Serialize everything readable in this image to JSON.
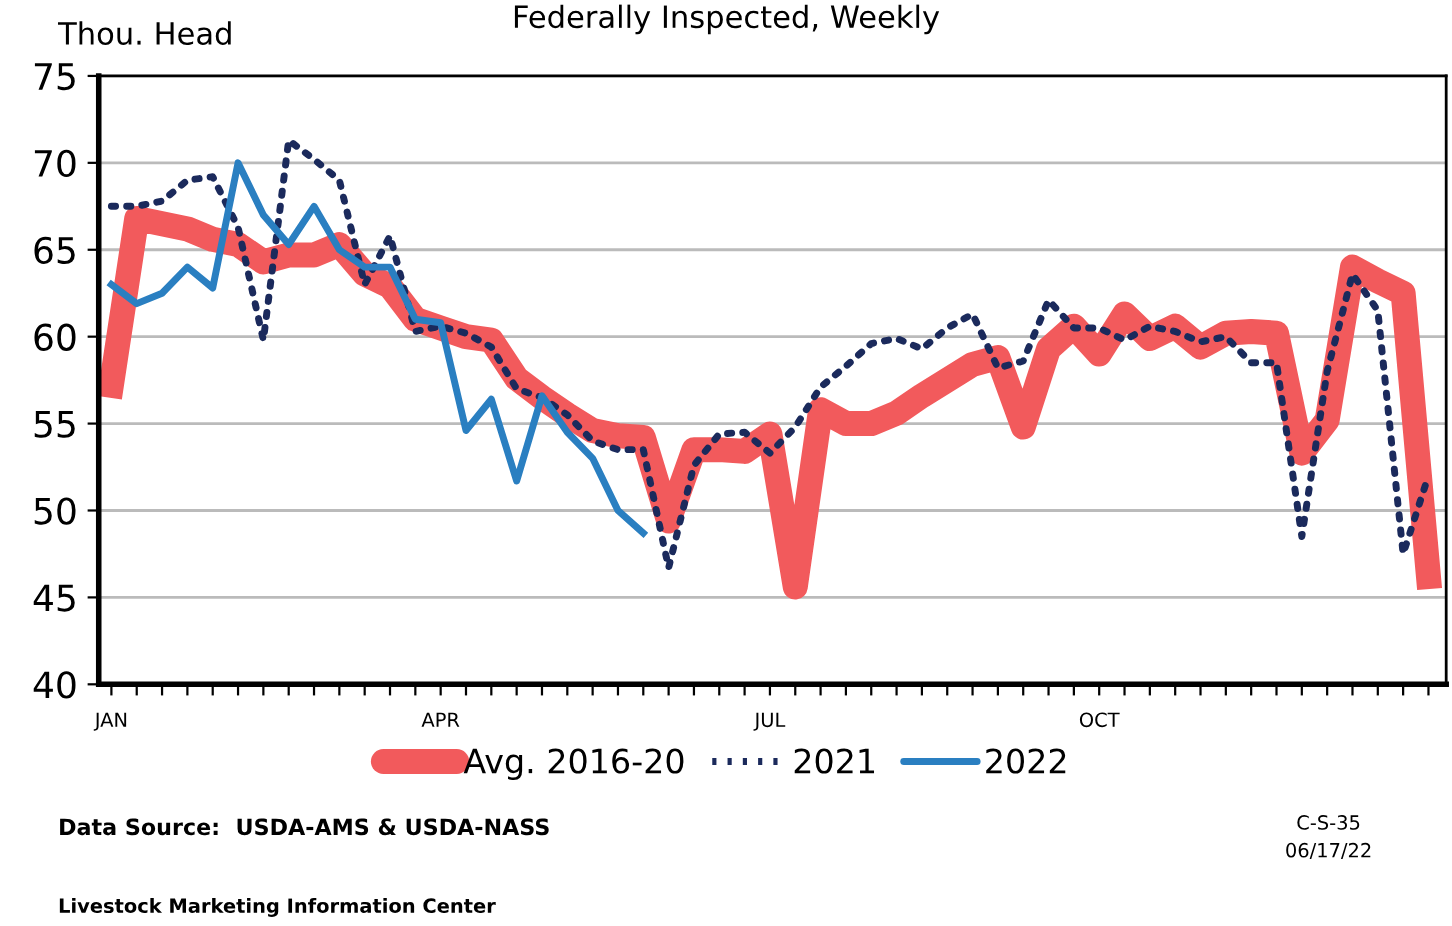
{
  "chart_data": {
    "type": "line",
    "title": "Federally Inspected, Weekly",
    "ylabel": "Thou. Head",
    "categories": [
      "JAN",
      null,
      null,
      null,
      null,
      null,
      null,
      null,
      null,
      null,
      null,
      null,
      null,
      "APR",
      null,
      null,
      null,
      null,
      null,
      null,
      null,
      null,
      null,
      null,
      null,
      null,
      "JUL",
      null,
      null,
      null,
      null,
      null,
      null,
      null,
      null,
      null,
      null,
      null,
      null,
      "OCT",
      null,
      null,
      null,
      null,
      null,
      null,
      null,
      null,
      null,
      null,
      null,
      null,
      null
    ],
    "series": [
      {
        "name": "Avg. 2016-20",
        "color": "#f25a5c",
        "line_style": "solid",
        "values": [
          57.2,
          66.8,
          66.5,
          66.2,
          65.6,
          65.3,
          64.3,
          64.7,
          64.7,
          65.3,
          63.6,
          62.9,
          61,
          60.5,
          60,
          59.8,
          57.6,
          56.5,
          55.5,
          54.6,
          54.3,
          54.2,
          49.4,
          53.5,
          53.5,
          53.4,
          54.4,
          45.6,
          55.8,
          55,
          55,
          55.6,
          56.6,
          57.5,
          58.4,
          58.8,
          54.8,
          59.3,
          60.6,
          59,
          61.3,
          59.9,
          60.6,
          59.4,
          60.2,
          60.3,
          60.2,
          53.3,
          55.2,
          64,
          63.2,
          62.5,
          46.2
        ]
      },
      {
        "name": "2021",
        "color": "#1b2a5c",
        "line_style": "dotted",
        "values": [
          67.5,
          67.5,
          67.8,
          69,
          69.2,
          66.3,
          59.8,
          71.3,
          70.2,
          69,
          63,
          65.8,
          60.3,
          60.6,
          60.2,
          59.4,
          57,
          56.5,
          55.5,
          54,
          53.5,
          53.5,
          46.7,
          52.6,
          54.4,
          54.5,
          53.3,
          54.8,
          57.1,
          58.3,
          59.6,
          59.9,
          59.3,
          60.5,
          61.3,
          58.2,
          58.6,
          62.1,
          60.5,
          60.5,
          59.8,
          60.6,
          60.3,
          59.7,
          60,
          58.5,
          58.5,
          48.5,
          58,
          63.6,
          61.5,
          47.5,
          52
        ]
      },
      {
        "name": "2022",
        "color": "#2a7fc1",
        "line_style": "solid",
        "values": [
          63,
          61.9,
          62.5,
          64,
          62.8,
          70,
          67,
          65.3,
          67.5,
          65,
          64,
          64,
          61,
          60.8,
          54.6,
          56.4,
          51.7,
          56.6,
          54.5,
          53,
          50,
          48.7,
          null,
          null,
          null,
          null,
          null,
          null,
          null,
          null,
          null,
          null,
          null,
          null,
          null,
          null,
          null,
          null,
          null,
          null,
          null,
          null,
          null,
          null,
          null,
          null,
          null,
          null,
          null,
          null,
          null,
          null,
          null
        ]
      }
    ],
    "ylim": [
      40,
      75
    ],
    "yticks": [
      40,
      45,
      50,
      55,
      60,
      65,
      70,
      75
    ],
    "grid": "y",
    "legend": "bottom",
    "annotations": [
      "Data Source:  USDA-AMS & USDA-NASS",
      "Livestock Marketing Information Center",
      "C-S-35",
      "06/17/22"
    ]
  }
}
